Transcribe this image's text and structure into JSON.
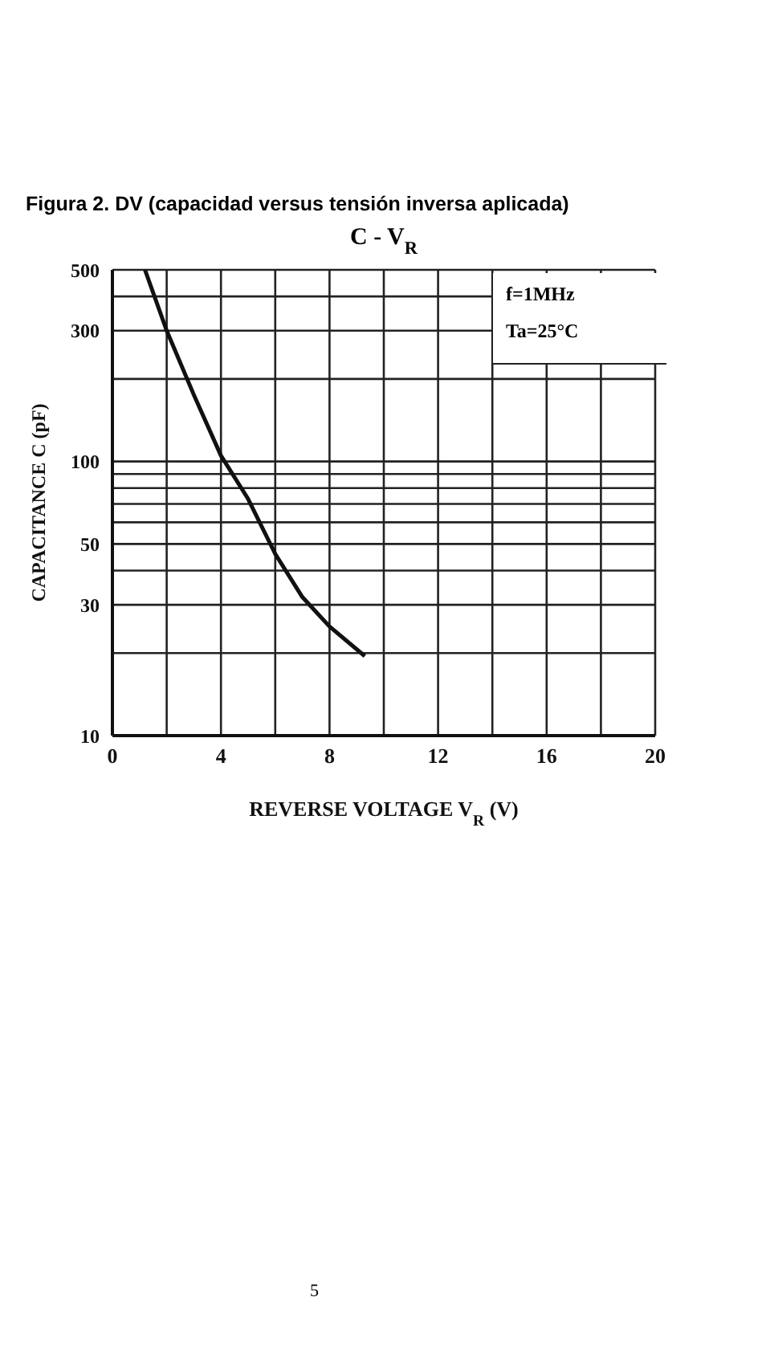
{
  "chart_data": {
    "type": "line",
    "title": "Figura 2. DV (capacidad versus tensión inversa aplicada)",
    "subtitle": "C - V$_{R}$",
    "xlabel": "REVERSE VOLTAGE  V$_{R}$  (V)",
    "ylabel": "CAPACITANCE  C  (pF)",
    "x": [
      1.2,
      2,
      3,
      4,
      5,
      6,
      7,
      8,
      9.3
    ],
    "series": [
      {
        "color": "#111111",
        "values": [
          500,
          300,
          175,
          105,
          73,
          46,
          32,
          25,
          19.5
        ]
      }
    ],
    "xlim": [
      0,
      20
    ],
    "xticks": [
      0,
      {
        "value": 2,
        "label": null
      },
      4,
      {
        "value": 6,
        "label": null
      },
      8,
      {
        "value": 10,
        "label": null
      },
      12,
      {
        "value": 14,
        "label": null
      },
      16,
      {
        "value": 18,
        "label": null
      },
      20
    ],
    "ylim": [
      10,
      500
    ],
    "yticks": [
      10,
      {
        "value": 20,
        "label": null
      },
      30,
      {
        "value": 40,
        "label": null
      },
      50,
      {
        "value": 60,
        "label": null
      },
      {
        "value": 70,
        "label": null
      },
      {
        "value": 80,
        "label": null
      },
      {
        "value": 90,
        "label": null
      },
      100,
      {
        "value": 200,
        "label": null
      },
      300,
      {
        "value": 400,
        "label": null
      },
      500
    ],
    "log": "y",
    "grid": true,
    "marker": "none",
    "line_style": "solid",
    "annotations": [
      "f=1MHz",
      "Ta=25°C",
      "5"
    ]
  }
}
